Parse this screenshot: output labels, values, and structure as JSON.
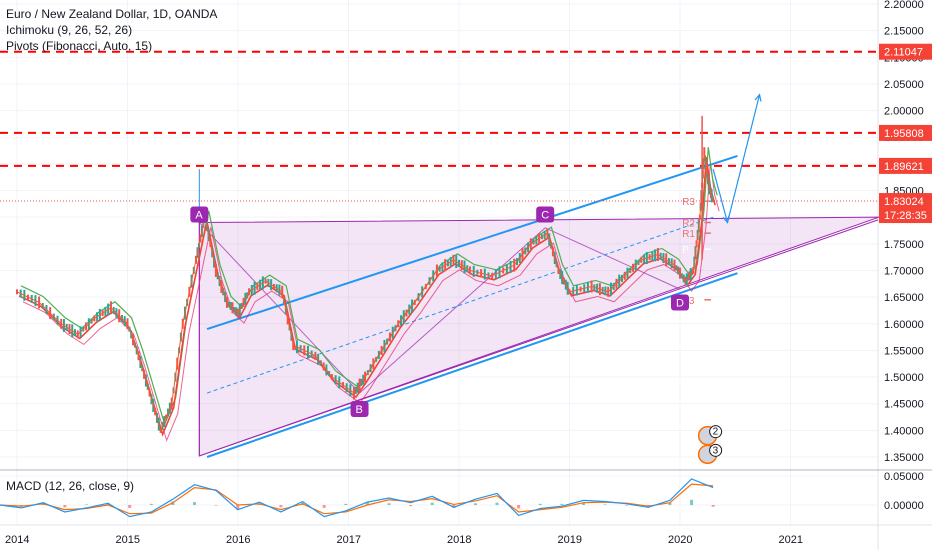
{
  "legend": {
    "symbol": "Euro / New Zealand Dollar, 1D, OANDA",
    "ichimoku": "Ichimoku (9, 26, 52, 26)",
    "pivots": "Pivots (Fibonacci, Auto, 15)"
  },
  "macd_legend": "MACD (12, 26, close, 9)",
  "colors": {
    "red_dashed": "#ff0000",
    "channel": "#2196f3",
    "triangle_fill": "#9c27b0",
    "triangle_line": "#9c27b0",
    "label_bg": "#9c27b0",
    "price_tag": "#f44336",
    "timer_tag": "#f44336",
    "price_line": "#ef5350",
    "candle_up": "#26a69a",
    "candle_down": "#ef5350",
    "ma_red": "#f44336",
    "ma_green": "#4caf50",
    "ma_pink": "#e91e63",
    "macd_line": "#2196f3",
    "signal_line": "#ff6d00"
  },
  "chart_data": [
    {
      "type": "line",
      "title": "Euro / New Zealand Dollar, 1D, OANDA",
      "xlabel": "",
      "ylabel": "",
      "x_tick_labels": [
        "2014",
        "2015",
        "2016",
        "2017",
        "2018",
        "2019",
        "2020",
        "2021"
      ],
      "y_tick_labels": [
        "2.20000",
        "2.15000",
        "2.10000",
        "2.05000",
        "2.00000",
        "1.95000",
        "1.90000",
        "1.85000",
        "1.80000",
        "1.75000",
        "1.70000",
        "1.65000",
        "1.60000",
        "1.55000",
        "1.50000",
        "1.45000",
        "1.40000",
        "1.35000"
      ],
      "ylim": [
        1.33,
        2.21
      ],
      "xlim": [
        2014.0,
        2021.8
      ],
      "series": [
        {
          "values": [
            [
              2014.0,
              1.66
            ],
            [
              2014.2,
              1.64
            ],
            [
              2014.4,
              1.6
            ],
            [
              2014.55,
              1.58
            ],
            [
              2014.7,
              1.61
            ],
            [
              2014.85,
              1.63
            ],
            [
              2015.0,
              1.6
            ],
            [
              2015.1,
              1.54
            ],
            [
              2015.2,
              1.47
            ],
            [
              2015.3,
              1.4
            ],
            [
              2015.4,
              1.45
            ],
            [
              2015.5,
              1.6
            ],
            [
              2015.62,
              1.72
            ],
            [
              2015.7,
              1.8
            ],
            [
              2015.8,
              1.7
            ],
            [
              2015.9,
              1.64
            ],
            [
              2016.0,
              1.62
            ],
            [
              2016.1,
              1.66
            ],
            [
              2016.25,
              1.68
            ],
            [
              2016.4,
              1.66
            ],
            [
              2016.5,
              1.56
            ],
            [
              2016.7,
              1.54
            ],
            [
              2016.85,
              1.5
            ],
            [
              2017.05,
              1.47
            ],
            [
              2017.15,
              1.5
            ],
            [
              2017.3,
              1.55
            ],
            [
              2017.45,
              1.6
            ],
            [
              2017.6,
              1.64
            ],
            [
              2017.8,
              1.7
            ],
            [
              2017.95,
              1.72
            ],
            [
              2018.1,
              1.7
            ],
            [
              2018.3,
              1.69
            ],
            [
              2018.5,
              1.71
            ],
            [
              2018.65,
              1.75
            ],
            [
              2018.8,
              1.77
            ],
            [
              2018.9,
              1.7
            ],
            [
              2019.0,
              1.66
            ],
            [
              2019.2,
              1.67
            ],
            [
              2019.35,
              1.66
            ],
            [
              2019.5,
              1.69
            ],
            [
              2019.65,
              1.72
            ],
            [
              2019.8,
              1.73
            ],
            [
              2019.95,
              1.71
            ],
            [
              2020.05,
              1.68
            ],
            [
              2020.12,
              1.7
            ],
            [
              2020.18,
              1.8
            ],
            [
              2020.22,
              1.92
            ],
            [
              2020.26,
              1.86
            ],
            [
              2020.3,
              1.83
            ]
          ]
        }
      ],
      "annotations": {
        "points": [
          "A",
          "B",
          "C",
          "D"
        ],
        "pivot_labels": [
          "R3",
          "R2",
          "R1",
          "P",
          "S3"
        ],
        "marker_badges": [
          "2",
          "3"
        ]
      },
      "horizontal_levels": [
        {
          "value": 2.11047,
          "label": "2.11047"
        },
        {
          "value": 1.95808,
          "label": "1.95808"
        },
        {
          "value": 1.89621,
          "label": "1.89621"
        }
      ],
      "current_price": {
        "value": 1.83024,
        "label": "1.83024",
        "timer": "17:28:35"
      },
      "grid": true
    },
    {
      "type": "line",
      "title": "MACD (12, 26, close, 9)",
      "y_tick_labels": [
        "0.05000",
        "0.00000"
      ],
      "ylim": [
        -0.035,
        0.055
      ],
      "series": [
        {
          "values": [
            0.0,
            -0.005,
            0.004,
            -0.012,
            -0.005,
            0.003,
            -0.02,
            -0.012,
            0.01,
            0.035,
            0.025,
            -0.008,
            0.005,
            -0.012,
            0.006,
            -0.02,
            -0.01,
            0.005,
            0.012,
            0.004,
            0.015,
            -0.004,
            0.01,
            0.02,
            -0.018,
            -0.006,
            -0.002,
            0.008,
            0.006,
            0.002,
            -0.004,
            0.008,
            0.045,
            0.03
          ]
        },
        {
          "values": [
            0.0,
            -0.002,
            0.002,
            -0.008,
            -0.006,
            0.0,
            -0.015,
            -0.014,
            0.004,
            0.03,
            0.026,
            0.0,
            0.002,
            -0.008,
            0.002,
            -0.015,
            -0.012,
            0.0,
            0.009,
            0.006,
            0.011,
            0.001,
            0.007,
            0.016,
            -0.012,
            -0.008,
            -0.004,
            0.004,
            0.005,
            0.003,
            -0.002,
            0.004,
            0.036,
            0.033
          ]
        }
      ]
    }
  ]
}
